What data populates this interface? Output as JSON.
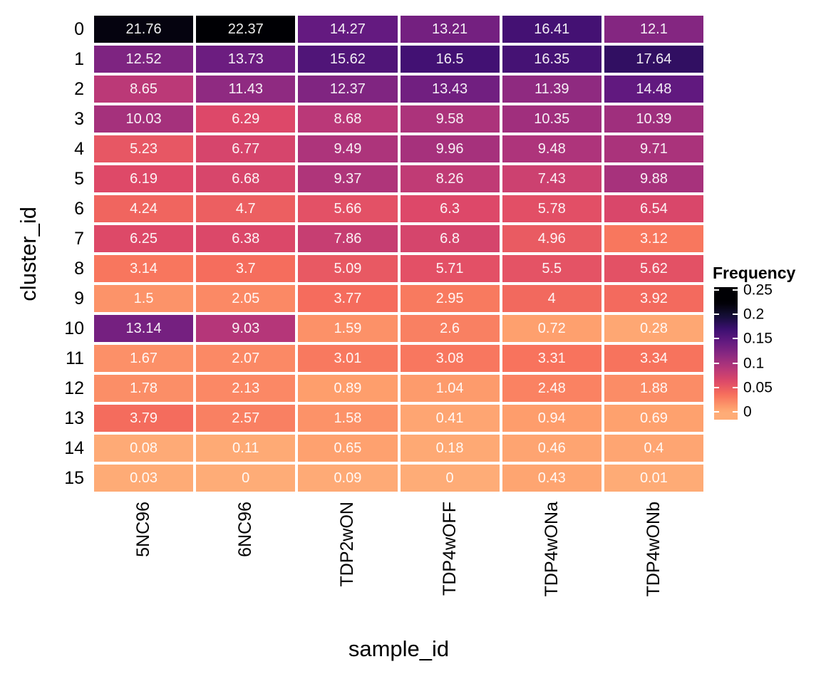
{
  "chart_data": {
    "type": "heatmap",
    "title": "",
    "xlabel": "sample_id",
    "ylabel": "cluster_id",
    "legend_title": "Frequency",
    "x_categories": [
      "5NC96",
      "6NC96",
      "TDP2wON",
      "TDP4wOFF",
      "TDP4wONa",
      "TDP4wONb"
    ],
    "y_categories": [
      "0",
      "1",
      "2",
      "3",
      "4",
      "5",
      "6",
      "7",
      "8",
      "9",
      "10",
      "11",
      "12",
      "13",
      "14",
      "15"
    ],
    "values": [
      [
        "21.76",
        "22.37",
        "14.27",
        "13.21",
        "16.41",
        "12.1"
      ],
      [
        "12.52",
        "13.73",
        "15.62",
        "16.5",
        "16.35",
        "17.64"
      ],
      [
        "8.65",
        "11.43",
        "12.37",
        "13.43",
        "11.39",
        "14.48"
      ],
      [
        "10.03",
        "6.29",
        "8.68",
        "9.58",
        "10.35",
        "10.39"
      ],
      [
        "5.23",
        "6.77",
        "9.49",
        "9.96",
        "9.48",
        "9.71"
      ],
      [
        "6.19",
        "6.68",
        "9.37",
        "8.26",
        "7.43",
        "9.88"
      ],
      [
        "4.24",
        "4.7",
        "5.66",
        "6.3",
        "5.78",
        "6.54"
      ],
      [
        "6.25",
        "6.38",
        "7.86",
        "6.8",
        "4.96",
        "3.12"
      ],
      [
        "3.14",
        "3.7",
        "5.09",
        "5.71",
        "5.5",
        "5.62"
      ],
      [
        "1.5",
        "2.05",
        "3.77",
        "2.95",
        "4",
        "3.92"
      ],
      [
        "13.14",
        "9.03",
        "1.59",
        "2.6",
        "0.72",
        "0.28"
      ],
      [
        "1.67",
        "2.07",
        "3.01",
        "3.08",
        "3.31",
        "3.34"
      ],
      [
        "1.78",
        "2.13",
        "0.89",
        "1.04",
        "2.48",
        "1.88"
      ],
      [
        "3.79",
        "2.57",
        "1.58",
        "0.41",
        "0.94",
        "0.69"
      ],
      [
        "0.08",
        "0.11",
        "0.65",
        "0.18",
        "0.46",
        "0.4"
      ],
      [
        "0.03",
        "0",
        "0.09",
        "0",
        "0.43",
        "0.01"
      ]
    ],
    "values_unit": "percent",
    "cell_label_color": "#ffffff",
    "legend": {
      "title": "Frequency",
      "tick_labels": [
        "0.25",
        "0.2",
        "0.15",
        "0.1",
        "0.05",
        "0"
      ],
      "tick_values": [
        0.25,
        0.2,
        0.15,
        0.1,
        0.05,
        0
      ],
      "bar_top_value": 0.2555,
      "bar_value_range": 0.2715,
      "position": "right"
    },
    "color_scale": {
      "name": "magma-reversed-truncated",
      "description": "high value = dark/black, low value = light orange",
      "domain_max_percent": 22.37,
      "truncate_end": 0.83,
      "anchors": [
        [
          0.0,
          "#000004"
        ],
        [
          0.1,
          "#140e36"
        ],
        [
          0.2,
          "#3b0f70"
        ],
        [
          0.3,
          "#641a80"
        ],
        [
          0.4,
          "#8c2981"
        ],
        [
          0.5,
          "#b73779"
        ],
        [
          0.6,
          "#de4968"
        ],
        [
          0.7,
          "#f7705c"
        ],
        [
          0.8,
          "#fe9f6d"
        ],
        [
          0.9,
          "#fec98d"
        ],
        [
          1.0,
          "#fcfdbf"
        ]
      ]
    },
    "grid": {
      "gap_color": "#ffffff",
      "background": "#ffffff"
    }
  }
}
